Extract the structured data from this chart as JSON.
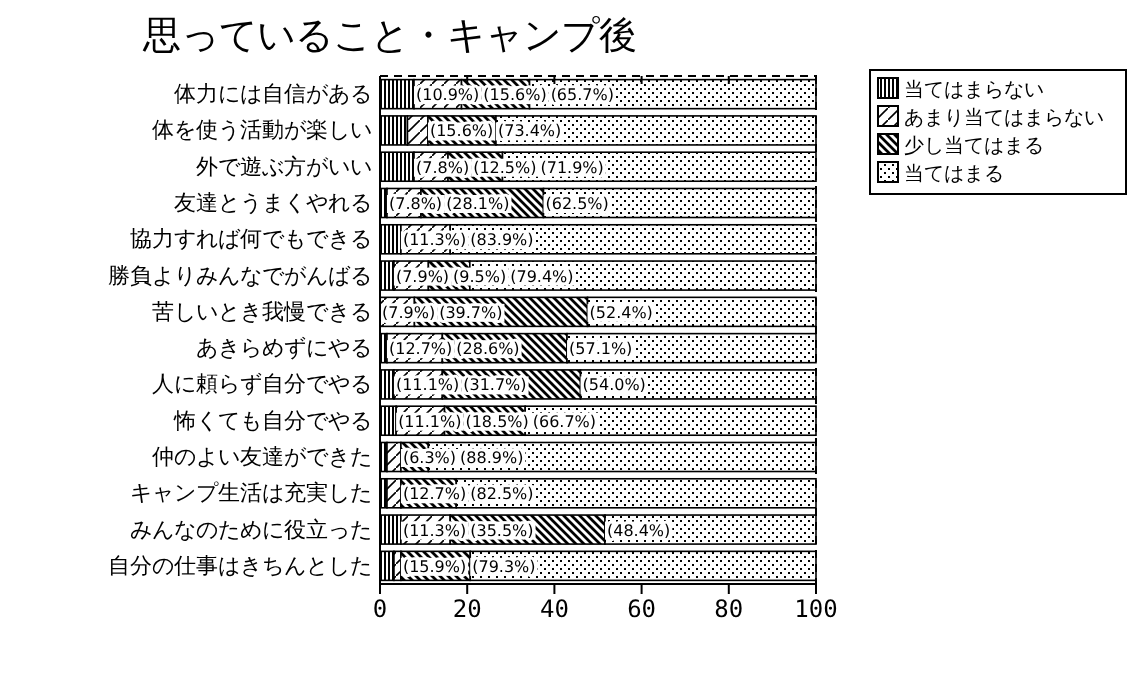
{
  "chart_data": {
    "type": "bar",
    "title": "思っていること・キャンプ後",
    "orientation": "horizontal",
    "stacked": true,
    "legend": "right",
    "categories": [
      "体力には自信がある",
      "体を使う活動が楽しい",
      "外で遊ぶ方がいい",
      "友達とうまくやれる",
      "協力すれば何でもできる",
      "勝負よりみんなでがんばる",
      "苦しいとき我慢できる",
      "あきらめずにやる",
      "人に頼らず自分でやる",
      "怖くても自分でやる",
      "仲のよい友達ができた",
      "キャンプ生活は充実した",
      "みんなのために役立った",
      "自分の仕事はきちんとした"
    ],
    "xlim": [
      0,
      100
    ],
    "xticks": [
      0,
      20,
      40,
      60,
      80,
      100
    ],
    "series": [
      {
        "name": "当てはまらない",
        "color": "#000000",
        "values": [
          7.8,
          6.3,
          7.8,
          1.6,
          4.8,
          3.2,
          0,
          1.6,
          3.2,
          3.7,
          1.6,
          1.6,
          4.8,
          3.2
        ],
        "value_labels": [
          null,
          null,
          null,
          null,
          null,
          null,
          null,
          null,
          null,
          null,
          null,
          null,
          null,
          null
        ]
      },
      {
        "name": "あまり当てはまらない",
        "color": "#000000",
        "values": [
          10.9,
          4.7,
          7.8,
          7.8,
          11.3,
          7.9,
          7.9,
          12.7,
          11.1,
          11.1,
          3.2,
          3.2,
          11.3,
          1.6
        ],
        "value_labels": [
          "(10.9%)",
          null,
          "(7.8%)",
          "(7.8%)",
          "(11.3%)",
          "(7.9%)",
          "(7.9%)",
          "(12.7%)",
          "(11.1%)",
          "(11.1%)",
          null,
          null,
          "(11.3%)",
          null
        ]
      },
      {
        "name": "少し当てはまる",
        "color": "#000000",
        "values": [
          15.6,
          15.6,
          12.5,
          28.1,
          0,
          9.5,
          39.7,
          28.6,
          31.7,
          18.5,
          6.3,
          12.7,
          35.5,
          15.9
        ],
        "value_labels": [
          "(15.6%)",
          "(15.6%)",
          "(12.5%)",
          "(28.1%)",
          null,
          "(9.5%)",
          "(39.7%)",
          "(28.6%)",
          "(31.7%)",
          "(18.5%)",
          "(6.3%)",
          "(12.7%)",
          "(35.5%)",
          "(15.9%)"
        ]
      },
      {
        "name": "当てはまる",
        "color": "#000000",
        "values": [
          65.7,
          73.4,
          71.9,
          62.5,
          83.9,
          79.4,
          52.4,
          57.1,
          54.0,
          66.7,
          88.9,
          82.5,
          48.4,
          79.3
        ],
        "value_labels": [
          "(65.7%)",
          "(73.4%)",
          "(71.9%)",
          "(62.5%)",
          "(83.9%)",
          "(79.4%)",
          "(52.4%)",
          "(57.1%)",
          "(54.0%)",
          "(66.7%)",
          "(88.9%)",
          "(82.5%)",
          "(48.4%)",
          "(79.3%)"
        ]
      }
    ]
  }
}
